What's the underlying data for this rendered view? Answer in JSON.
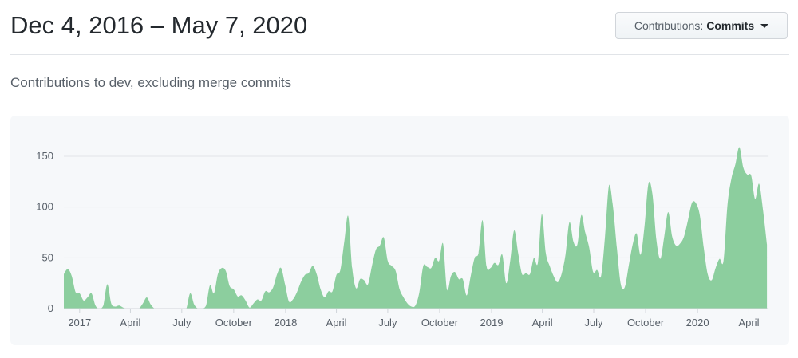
{
  "header": {
    "title": "Dec 4, 2016 – May 7, 2020",
    "dropdown_prefix": "Contributions:",
    "dropdown_value": "Commits",
    "dropdown_icon": "caret-down-icon"
  },
  "subtitle": "Contributions to dev, excluding merge commits",
  "chart_data": {
    "type": "area",
    "interval": "week",
    "start": "2016-12-04",
    "end": "2020-05-07",
    "color": "#8cce9e",
    "grid": true,
    "ylim": [
      0,
      150
    ],
    "yticks": [
      0,
      50,
      100,
      150
    ],
    "xticks": [
      {
        "label": "2017",
        "date": "2017-01-01"
      },
      {
        "label": "April",
        "date": "2017-04-01"
      },
      {
        "label": "July",
        "date": "2017-07-01"
      },
      {
        "label": "October",
        "date": "2017-10-01"
      },
      {
        "label": "2018",
        "date": "2018-01-01"
      },
      {
        "label": "April",
        "date": "2018-04-01"
      },
      {
        "label": "July",
        "date": "2018-07-01"
      },
      {
        "label": "October",
        "date": "2018-10-01"
      },
      {
        "label": "2019",
        "date": "2019-01-01"
      },
      {
        "label": "April",
        "date": "2019-04-01"
      },
      {
        "label": "July",
        "date": "2019-07-01"
      },
      {
        "label": "October",
        "date": "2019-10-01"
      },
      {
        "label": "2020",
        "date": "2020-01-01"
      },
      {
        "label": "April",
        "date": "2020-04-01"
      }
    ],
    "values": [
      34,
      39,
      32,
      16,
      15,
      8,
      11,
      15,
      3,
      0,
      3,
      24,
      5,
      2,
      3,
      1,
      0,
      0,
      0,
      0,
      5,
      11,
      4,
      0,
      0,
      0,
      0,
      0,
      0,
      0,
      0,
      0,
      15,
      4,
      0,
      0,
      3,
      23,
      15,
      34,
      40,
      37,
      22,
      19,
      12,
      13,
      8,
      1,
      5,
      9,
      8,
      17,
      16,
      21,
      34,
      40,
      24,
      7,
      9,
      16,
      26,
      33,
      35,
      42,
      34,
      19,
      11,
      17,
      17,
      33,
      38,
      66,
      91,
      40,
      20,
      29,
      28,
      24,
      42,
      58,
      62,
      70,
      47,
      42,
      37,
      19,
      11,
      5,
      2,
      3,
      16,
      42,
      41,
      40,
      50,
      47,
      64,
      19,
      32,
      36,
      29,
      29,
      13,
      32,
      50,
      55,
      87,
      42,
      40,
      45,
      43,
      53,
      25,
      47,
      77,
      55,
      34,
      35,
      34,
      50,
      45,
      93,
      55,
      42,
      32,
      26,
      34,
      53,
      85,
      66,
      63,
      92,
      75,
      60,
      36,
      38,
      32,
      71,
      121,
      101,
      60,
      24,
      21,
      42,
      63,
      74,
      53,
      81,
      123,
      113,
      68,
      49,
      71,
      95,
      71,
      62,
      64,
      71,
      87,
      104,
      104,
      92,
      60,
      34,
      28,
      40,
      49,
      47,
      102,
      128,
      142,
      159,
      139,
      132,
      131,
      108,
      123,
      97,
      63
    ]
  }
}
